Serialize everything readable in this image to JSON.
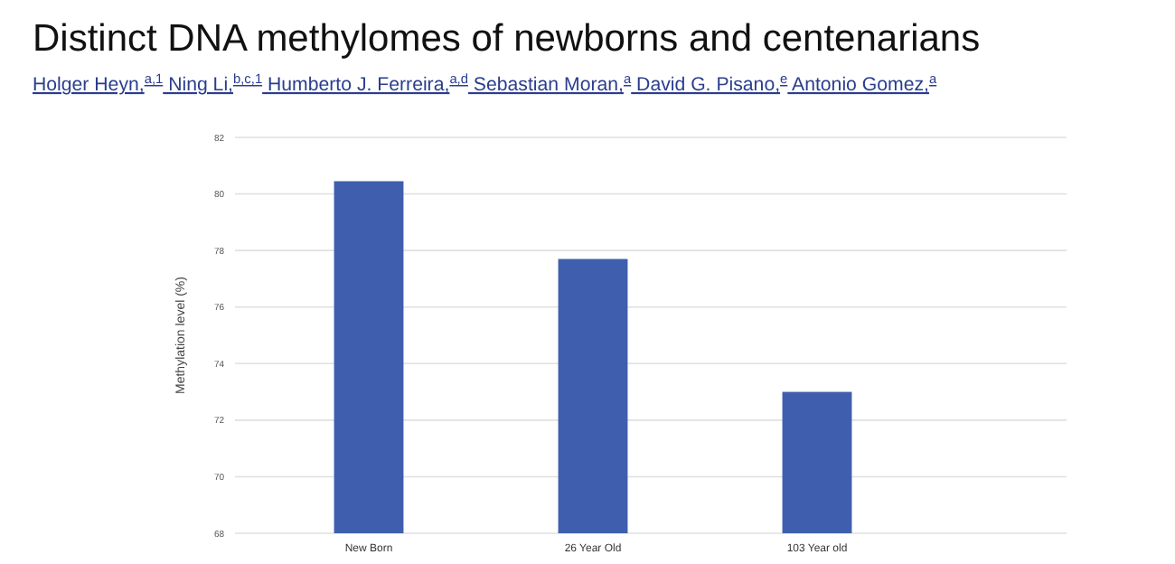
{
  "chart_data": {
    "type": "bar",
    "title": "Distinct DNA methylomes of newborns and centenarians",
    "subtitle": "Holger Heyn,$^{a,1}$ Ning Li,$^{b,c,1}$ Humberto J. Ferreira,$^{a,d}$ Sebastian Moran,$^{a}$ David G. Pisano,$^{e}$ Antonio Gomez,$^{a}$",
    "categories": [
      "New Born",
      "26 Year Old",
      "103 Year old"
    ],
    "values": [
      80.45,
      77.7,
      73.0
    ],
    "color": "#3f5fae",
    "ylabel": "Methylation level (%)",
    "ylim": [
      68,
      82
    ],
    "yticks": [
      68,
      70,
      72,
      74,
      76,
      78,
      80,
      82
    ],
    "grid": "y"
  }
}
